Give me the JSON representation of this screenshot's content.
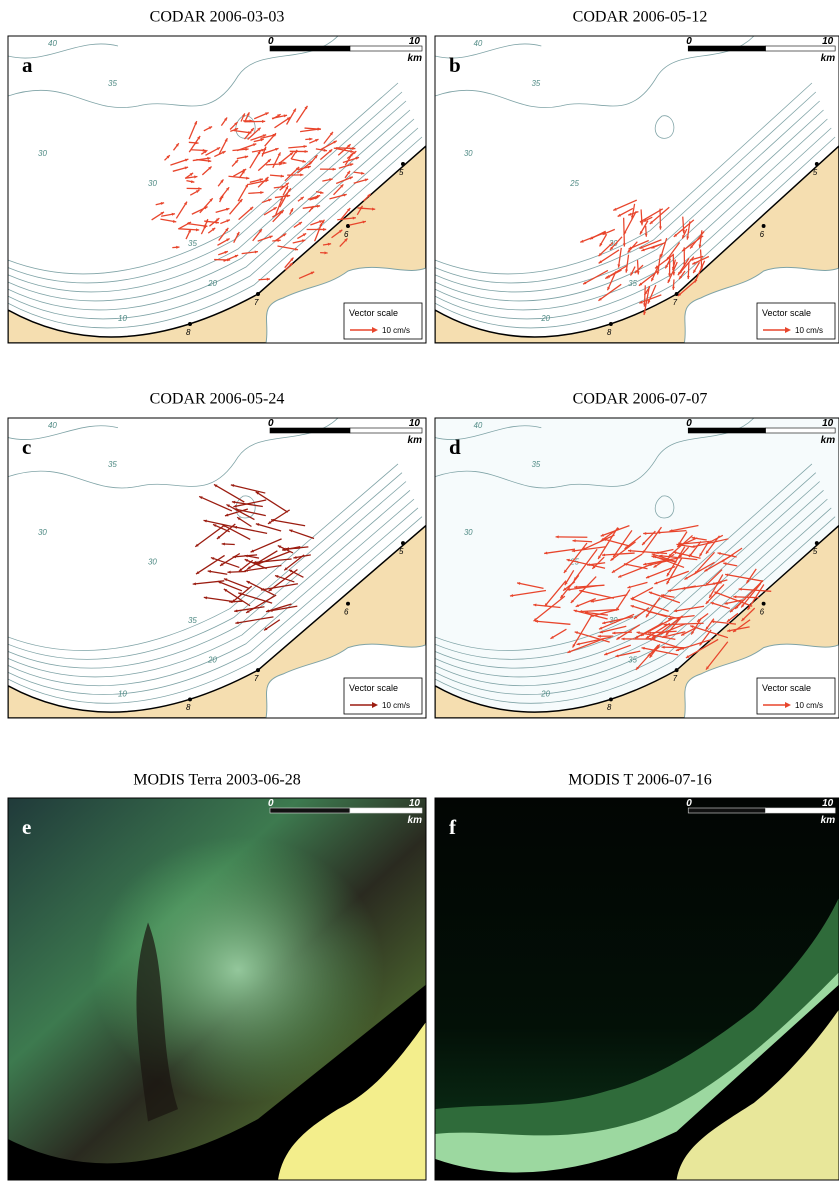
{
  "panels": [
    {
      "title": "CODAR 2006-03-03",
      "letter": "a",
      "scale": {
        "start": "0",
        "end": "10",
        "unit": "km"
      },
      "vector_scale": {
        "label": "Vector scale",
        "value": "10 cm/s"
      },
      "stations": [
        "5",
        "6",
        "7",
        "8"
      ],
      "depth_labels": [
        "40",
        "35",
        "30",
        "30",
        "35",
        "20",
        "10"
      ]
    },
    {
      "title": "CODAR 2006-05-12",
      "letter": "b",
      "scale": {
        "start": "0",
        "end": "10",
        "unit": "km"
      },
      "vector_scale": {
        "label": "Vector scale",
        "value": "10 cm/s"
      },
      "stations": [
        "5",
        "6",
        "7",
        "8"
      ],
      "depth_labels": [
        "40",
        "35",
        "30",
        "25",
        "30",
        "35",
        "20"
      ]
    },
    {
      "title": "CODAR 2006-05-24",
      "letter": "c",
      "scale": {
        "start": "0",
        "end": "10",
        "unit": "km"
      },
      "vector_scale": {
        "label": "Vector scale",
        "value": "10 cm/s"
      },
      "stations": [
        "5",
        "6",
        "7",
        "8"
      ],
      "depth_labels": [
        "40",
        "35",
        "30",
        "30",
        "35",
        "20",
        "10"
      ]
    },
    {
      "title": "CODAR 2006-07-07",
      "letter": "d",
      "scale": {
        "start": "0",
        "end": "10",
        "unit": "km"
      },
      "vector_scale": {
        "label": "Vector scale",
        "value": "10 cm/s"
      },
      "stations": [
        "5",
        "6",
        "7",
        "8"
      ],
      "depth_labels": [
        "40",
        "35",
        "30",
        "25",
        "30",
        "35",
        "20"
      ]
    },
    {
      "title": "MODIS Terra 2003-06-28",
      "letter": "e",
      "scale": {
        "start": "0",
        "end": "10",
        "unit": "km"
      }
    },
    {
      "title": "MODIS T 2006-07-16",
      "letter": "f",
      "scale": {
        "start": "0",
        "end": "10",
        "unit": "km"
      }
    }
  ]
}
